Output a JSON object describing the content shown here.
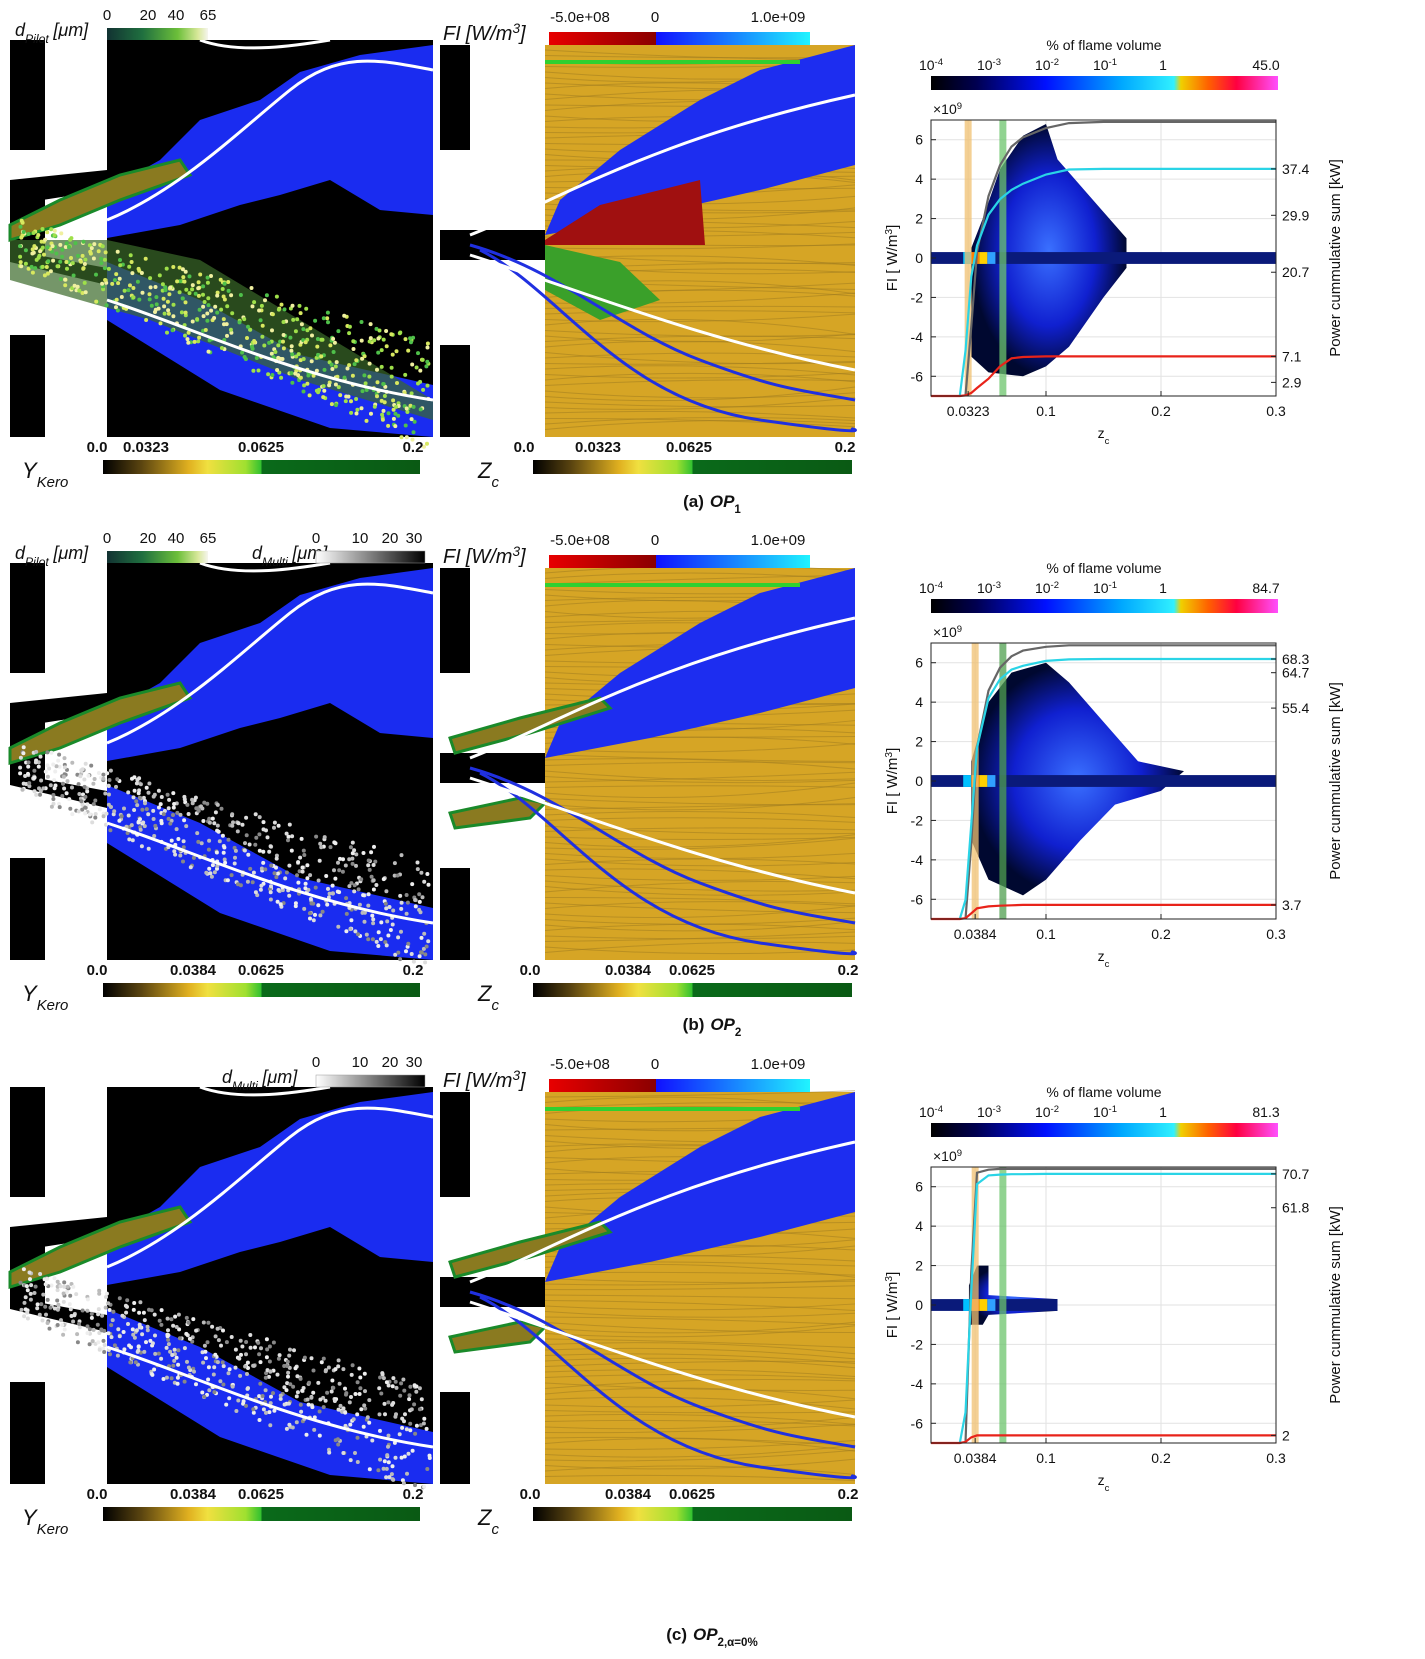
{
  "figure": {
    "rows": [
      {
        "caption": {
          "label": "(a)",
          "text": "OP",
          "sub": "1"
        },
        "dpilot": {
          "text": "d",
          "sub": "Pilot",
          "unit": "[μm]",
          "ticks": [
            "0",
            "20",
            "40",
            "65"
          ]
        },
        "ykero": {
          "text": "Y",
          "sub": "Kero",
          "ticks": [
            "0.0",
            "0.0323",
            "0.0625",
            "0.2"
          ]
        },
        "fi": {
          "text": "FI",
          "unit": "[W/m",
          "sup": "3",
          "end": "]",
          "ticks": [
            "-5.0e+08",
            "0",
            "1.0e+09"
          ]
        },
        "zc": {
          "text": "Z",
          "sub": "c",
          "ticks": [
            "0.0",
            "0.0323",
            "0.0625",
            "0.2"
          ]
        }
      },
      {
        "caption": {
          "label": "(b)",
          "text": "OP",
          "sub": "2"
        },
        "dpilot": {
          "text": "d",
          "sub": "Pilot",
          "unit": "[μm]",
          "ticks": [
            "0",
            "20",
            "40",
            "65"
          ]
        },
        "dmulti": {
          "text": "d",
          "sub": "Multi",
          "unit": "[μm]",
          "ticks": [
            "0",
            "10",
            "20",
            "30"
          ]
        },
        "ykero": {
          "text": "Y",
          "sub": "Kero",
          "ticks": [
            "0.0",
            "0.0384",
            "0.0625",
            "0.2"
          ]
        },
        "fi": {
          "text": "FI",
          "unit": "[W/m",
          "sup": "3",
          "end": "]",
          "ticks": [
            "-5.0e+08",
            "0",
            "1.0e+09"
          ]
        },
        "zc": {
          "text": "Z",
          "sub": "c",
          "ticks": [
            "0.0",
            "0.0384",
            "0.0625",
            "0.2"
          ]
        }
      },
      {
        "caption": {
          "label": "(c)",
          "text": "OP",
          "sub": "2,α=0%"
        },
        "dmulti": {
          "text": "d",
          "sub": "Multi",
          "unit": "[μm]",
          "ticks": [
            "0",
            "10",
            "20",
            "30"
          ]
        },
        "ykero": {
          "text": "Y",
          "sub": "Kero",
          "ticks": [
            "0.0",
            "0.0384",
            "0.0625",
            "0.2"
          ]
        },
        "fi": {
          "text": "FI",
          "unit": "[W/m",
          "sup": "3",
          "end": "]",
          "ticks": [
            "-5.0e+08",
            "0",
            "1.0e+09"
          ]
        },
        "zc": {
          "text": "Z",
          "sub": "c",
          "ticks": [
            "0.0",
            "0.0384",
            "0.0625",
            "0.2"
          ]
        }
      }
    ]
  },
  "chart_data": [
    {
      "type": "line",
      "colorbar": {
        "title": "% of flame volume",
        "ticks": [
          {
            "base": "10",
            "exp": "-4"
          },
          {
            "base": "10",
            "exp": "-3"
          },
          {
            "base": "10",
            "exp": "-2"
          },
          {
            "base": "10",
            "exp": "-1"
          },
          "1",
          "45.0"
        ]
      },
      "multiplier": {
        "base": "×10",
        "exp": "9"
      },
      "ylabel": {
        "text": "FI [ W/m",
        "sup": "3",
        "end": "]"
      },
      "y2label": "Power cummulative sum [kW]",
      "xlabel": {
        "text": "z",
        "sub": "c"
      },
      "xlim": [
        0,
        0.3
      ],
      "xticks": [
        0.0323,
        0.1,
        0.2,
        0.3
      ],
      "ylim": [
        -7,
        7
      ],
      "yticks": [
        -6,
        -4,
        -2,
        0,
        2,
        4,
        6
      ],
      "y2lim": [
        0.7,
        45.3
      ],
      "y2ticks": [
        2.9,
        7.1,
        20.7,
        29.9,
        37.4
      ],
      "grid": true,
      "bands": [
        {
          "value": 0.0323,
          "color": "#f0c070"
        },
        {
          "value": 0.0625,
          "color": "#6cc46c"
        }
      ],
      "x": [
        0,
        0.025,
        0.03,
        0.035,
        0.04,
        0.05,
        0.06,
        0.07,
        0.08,
        0.1,
        0.12,
        0.15,
        0.3
      ],
      "series": [
        {
          "color": "#666666",
          "axis": "y2",
          "values": [
            null,
            null,
            0.7,
            12,
            24,
            33,
            38,
            41,
            42.5,
            44,
            44.8,
            45,
            45
          ]
        },
        {
          "color": "#2ad4e6",
          "axis": "y2",
          "values": [
            null,
            0.7,
            8,
            20,
            25,
            30,
            32.5,
            34,
            35,
            36.5,
            37.3,
            37.4,
            37.4
          ]
        },
        {
          "color": "#e8231a",
          "axis": "y2",
          "values": [
            0.7,
            0.7,
            0.8,
            1.2,
            2,
            3.5,
            5.5,
            6.8,
            7,
            7.1,
            7.1,
            7.1,
            7.1
          ]
        }
      ]
    },
    {
      "type": "line",
      "colorbar": {
        "title": "% of flame volume",
        "ticks": [
          {
            "base": "10",
            "exp": "-4"
          },
          {
            "base": "10",
            "exp": "-3"
          },
          {
            "base": "10",
            "exp": "-2"
          },
          {
            "base": "10",
            "exp": "-1"
          },
          "1",
          "84.7"
        ]
      },
      "multiplier": {
        "base": "×10",
        "exp": "9"
      },
      "ylabel": {
        "text": "FI [ W/m",
        "sup": "3",
        "end": "]"
      },
      "y2label": "Power cummulative sum [kW]",
      "xlabel": {
        "text": "z",
        "sub": "c"
      },
      "xlim": [
        0,
        0.3
      ],
      "xticks": [
        0.0384,
        0.1,
        0.2,
        0.3
      ],
      "ylim": [
        -7,
        7
      ],
      "yticks": [
        -6,
        -4,
        -2,
        0,
        2,
        4,
        6
      ],
      "y2lim": [
        0,
        72.5
      ],
      "y2ticks": [
        3.7,
        55.4,
        64.7,
        68.3
      ],
      "grid": true,
      "bands": [
        {
          "value": 0.0384,
          "color": "#f0c070"
        },
        {
          "value": 0.0625,
          "color": "#4f9f4f"
        }
      ],
      "x": [
        0,
        0.025,
        0.03,
        0.035,
        0.04,
        0.05,
        0.06,
        0.07,
        0.08,
        0.1,
        0.12,
        0.15,
        0.3
      ],
      "series": [
        {
          "color": "#666666",
          "axis": "y2",
          "values": [
            null,
            null,
            0,
            20,
            45,
            60,
            66,
            69,
            70.5,
            71.5,
            71.9,
            71.9,
            71.9
          ]
        },
        {
          "color": "#2ad4e6",
          "axis": "y2",
          "values": [
            null,
            0,
            5,
            25,
            45,
            58,
            63,
            65.5,
            66.5,
            67.8,
            68.2,
            68.3,
            68.3
          ]
        },
        {
          "color": "#e8231a",
          "axis": "y2",
          "values": [
            0,
            0,
            0.2,
            1.5,
            2.8,
            3.3,
            3.5,
            3.6,
            3.7,
            3.7,
            3.7,
            3.7,
            3.7
          ]
        }
      ]
    },
    {
      "type": "line",
      "colorbar": {
        "title": "% of flame volume",
        "ticks": [
          {
            "base": "10",
            "exp": "-4"
          },
          {
            "base": "10",
            "exp": "-3"
          },
          {
            "base": "10",
            "exp": "-2"
          },
          {
            "base": "10",
            "exp": "-1"
          },
          "1",
          "81.3"
        ]
      },
      "multiplier": {
        "base": "×10",
        "exp": "9"
      },
      "ylabel": {
        "text": "FI [ W/m",
        "sup": "3",
        "end": "]"
      },
      "y2label": "Power cummulative sum [kW]",
      "xlabel": {
        "text": "z",
        "sub": "c"
      },
      "xlim": [
        0,
        0.3
      ],
      "xticks": [
        0.0384,
        0.1,
        0.2,
        0.3
      ],
      "ylim": [
        -7,
        7
      ],
      "yticks": [
        -6,
        -4,
        -2,
        0,
        2,
        4,
        6
      ],
      "y2lim": [
        0,
        72.5
      ],
      "y2ticks": [
        2.0,
        61.8,
        70.7
      ],
      "grid": true,
      "bands": [
        {
          "value": 0.0384,
          "color": "#f0c070"
        },
        {
          "value": 0.0625,
          "color": "#6cc46c"
        }
      ],
      "x": [
        0,
        0.025,
        0.03,
        0.035,
        0.04,
        0.05,
        0.06,
        0.07,
        0.08,
        0.1,
        0.12,
        0.15,
        0.3
      ],
      "series": [
        {
          "color": "#666666",
          "axis": "y2",
          "values": [
            null,
            null,
            0,
            45,
            71,
            71.8,
            72,
            72,
            72,
            72,
            72,
            72,
            72
          ]
        },
        {
          "color": "#2ad4e6",
          "axis": "y2",
          "values": [
            null,
            0,
            8,
            40,
            68,
            70.3,
            70.5,
            70.6,
            70.6,
            70.7,
            70.7,
            70.7,
            70.7
          ]
        },
        {
          "color": "#e8231a",
          "axis": "y2",
          "values": [
            0,
            0,
            0.3,
            1.5,
            2.0,
            2.0,
            2.0,
            2.0,
            2.0,
            2.0,
            2.0,
            2.0,
            2.0
          ]
        }
      ]
    }
  ]
}
